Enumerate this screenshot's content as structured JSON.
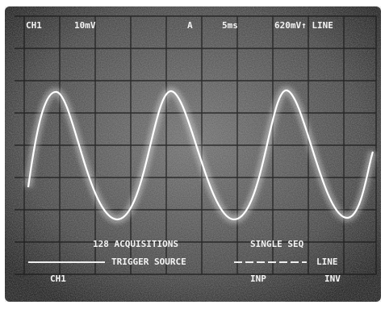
{
  "readout": {
    "channel": "CH1",
    "volts_per_div": "10mV",
    "timebase_label": "A",
    "time_per_div": "5ms",
    "trigger": "620mV↑ LINE"
  },
  "menu": {
    "status": "128 ACQUISITIONS",
    "mode": "SINGLE SEQ",
    "title": "TRIGGER SOURCE",
    "setting": "LINE",
    "buttons": [
      "CH1",
      "INP",
      "INV"
    ]
  }
}
